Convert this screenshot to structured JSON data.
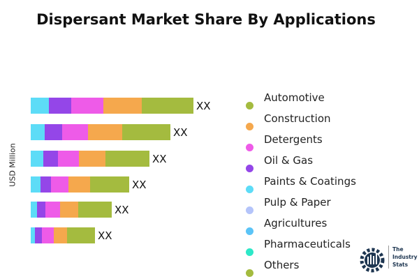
{
  "chart_data": {
    "type": "bar",
    "orientation": "horizontal",
    "stacked": true,
    "title": "Dispersant Market Share By Applications",
    "ylabel": "USD Million",
    "bar_labels": [
      "XX",
      "XX",
      "XX",
      "XX",
      "XX",
      "XX"
    ],
    "grid": false,
    "legend_position": "right",
    "series": [
      {
        "name": "Paints & Coatings",
        "color": "#5ddcf7",
        "values": [
          26,
          20,
          18,
          14,
          9,
          6
        ]
      },
      {
        "name": "Oil & Gas",
        "color": "#9446e8",
        "values": [
          32,
          25,
          21,
          15,
          12,
          10
        ]
      },
      {
        "name": "Detergents",
        "color": "#ee5be8",
        "values": [
          46,
          37,
          30,
          25,
          21,
          17
        ]
      },
      {
        "name": "Construction",
        "color": "#f5a84d",
        "values": [
          55,
          49,
          38,
          31,
          26,
          19
        ]
      },
      {
        "name": "Automotive",
        "color": "#a4bb3f",
        "values": [
          74,
          69,
          63,
          56,
          48,
          40
        ]
      }
    ],
    "legend": [
      {
        "name": "Automotive",
        "color": "#a4bb3f"
      },
      {
        "name": "Construction",
        "color": "#f5a84d"
      },
      {
        "name": "Detergents",
        "color": "#ee5be8"
      },
      {
        "name": "Oil & Gas",
        "color": "#9446e8"
      },
      {
        "name": "Paints & Coatings",
        "color": "#5ddcf7"
      },
      {
        "name": "Pulp & Paper",
        "color": "#b4c4fa"
      },
      {
        "name": "Agricultures",
        "color": "#5bc4f7"
      },
      {
        "name": "Pharmaceuticals",
        "color": "#2de8c8"
      },
      {
        "name": "Others",
        "color": "#a4bb3f"
      }
    ]
  },
  "logo": {
    "line1": "The",
    "line2": "Industry",
    "line3": "Stats"
  }
}
